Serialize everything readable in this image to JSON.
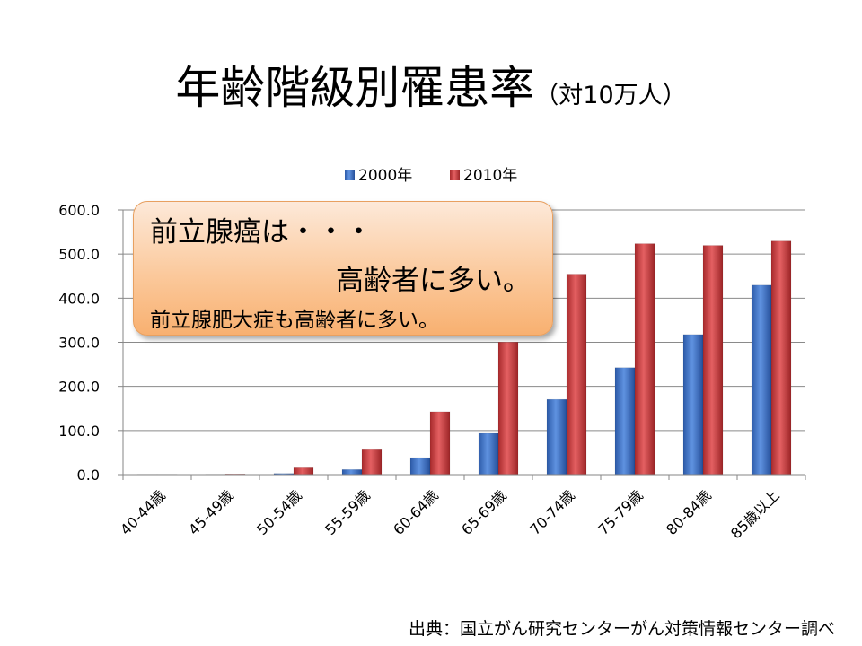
{
  "title": {
    "main": "年齢階級別罹患率",
    "sub": "（対10万人）"
  },
  "callout": {
    "line1": "前立腺癌は・・・",
    "line2": "高齢者に多い。",
    "line3": "前立腺肥大症も高齢者に多い。"
  },
  "source": "出典：国立がん研究センターがん対策情報センター調べ",
  "colors": {
    "series_2000": "#3d6fc1",
    "series_2010": "#c8383a",
    "grid": "#8a8a8a",
    "callout_fill": "#fbc99c"
  },
  "chart_data": {
    "type": "bar",
    "categories": [
      "40-44歳",
      "45-49歳",
      "50-54歳",
      "55-59歳",
      "60-64歳",
      "65-69歳",
      "70-74歳",
      "75-79歳",
      "80-84歳",
      "85歳以上"
    ],
    "series": [
      {
        "name": "2000年",
        "values": [
          0.1,
          0.5,
          2.5,
          11.5,
          38.5,
          93.5,
          170.5,
          242.5,
          317.5,
          429.5
        ]
      },
      {
        "name": "2010年",
        "values": [
          0.4,
          1.5,
          15.5,
          58.5,
          142.5,
          300.5,
          454.5,
          523.5,
          519.5,
          529.5
        ]
      }
    ],
    "yticks": [
      "0.0",
      "100.0",
      "200.0",
      "300.0",
      "400.0",
      "500.0",
      "600.0"
    ],
    "ylim": [
      0,
      600
    ],
    "grid": true,
    "legend_position": "top"
  }
}
